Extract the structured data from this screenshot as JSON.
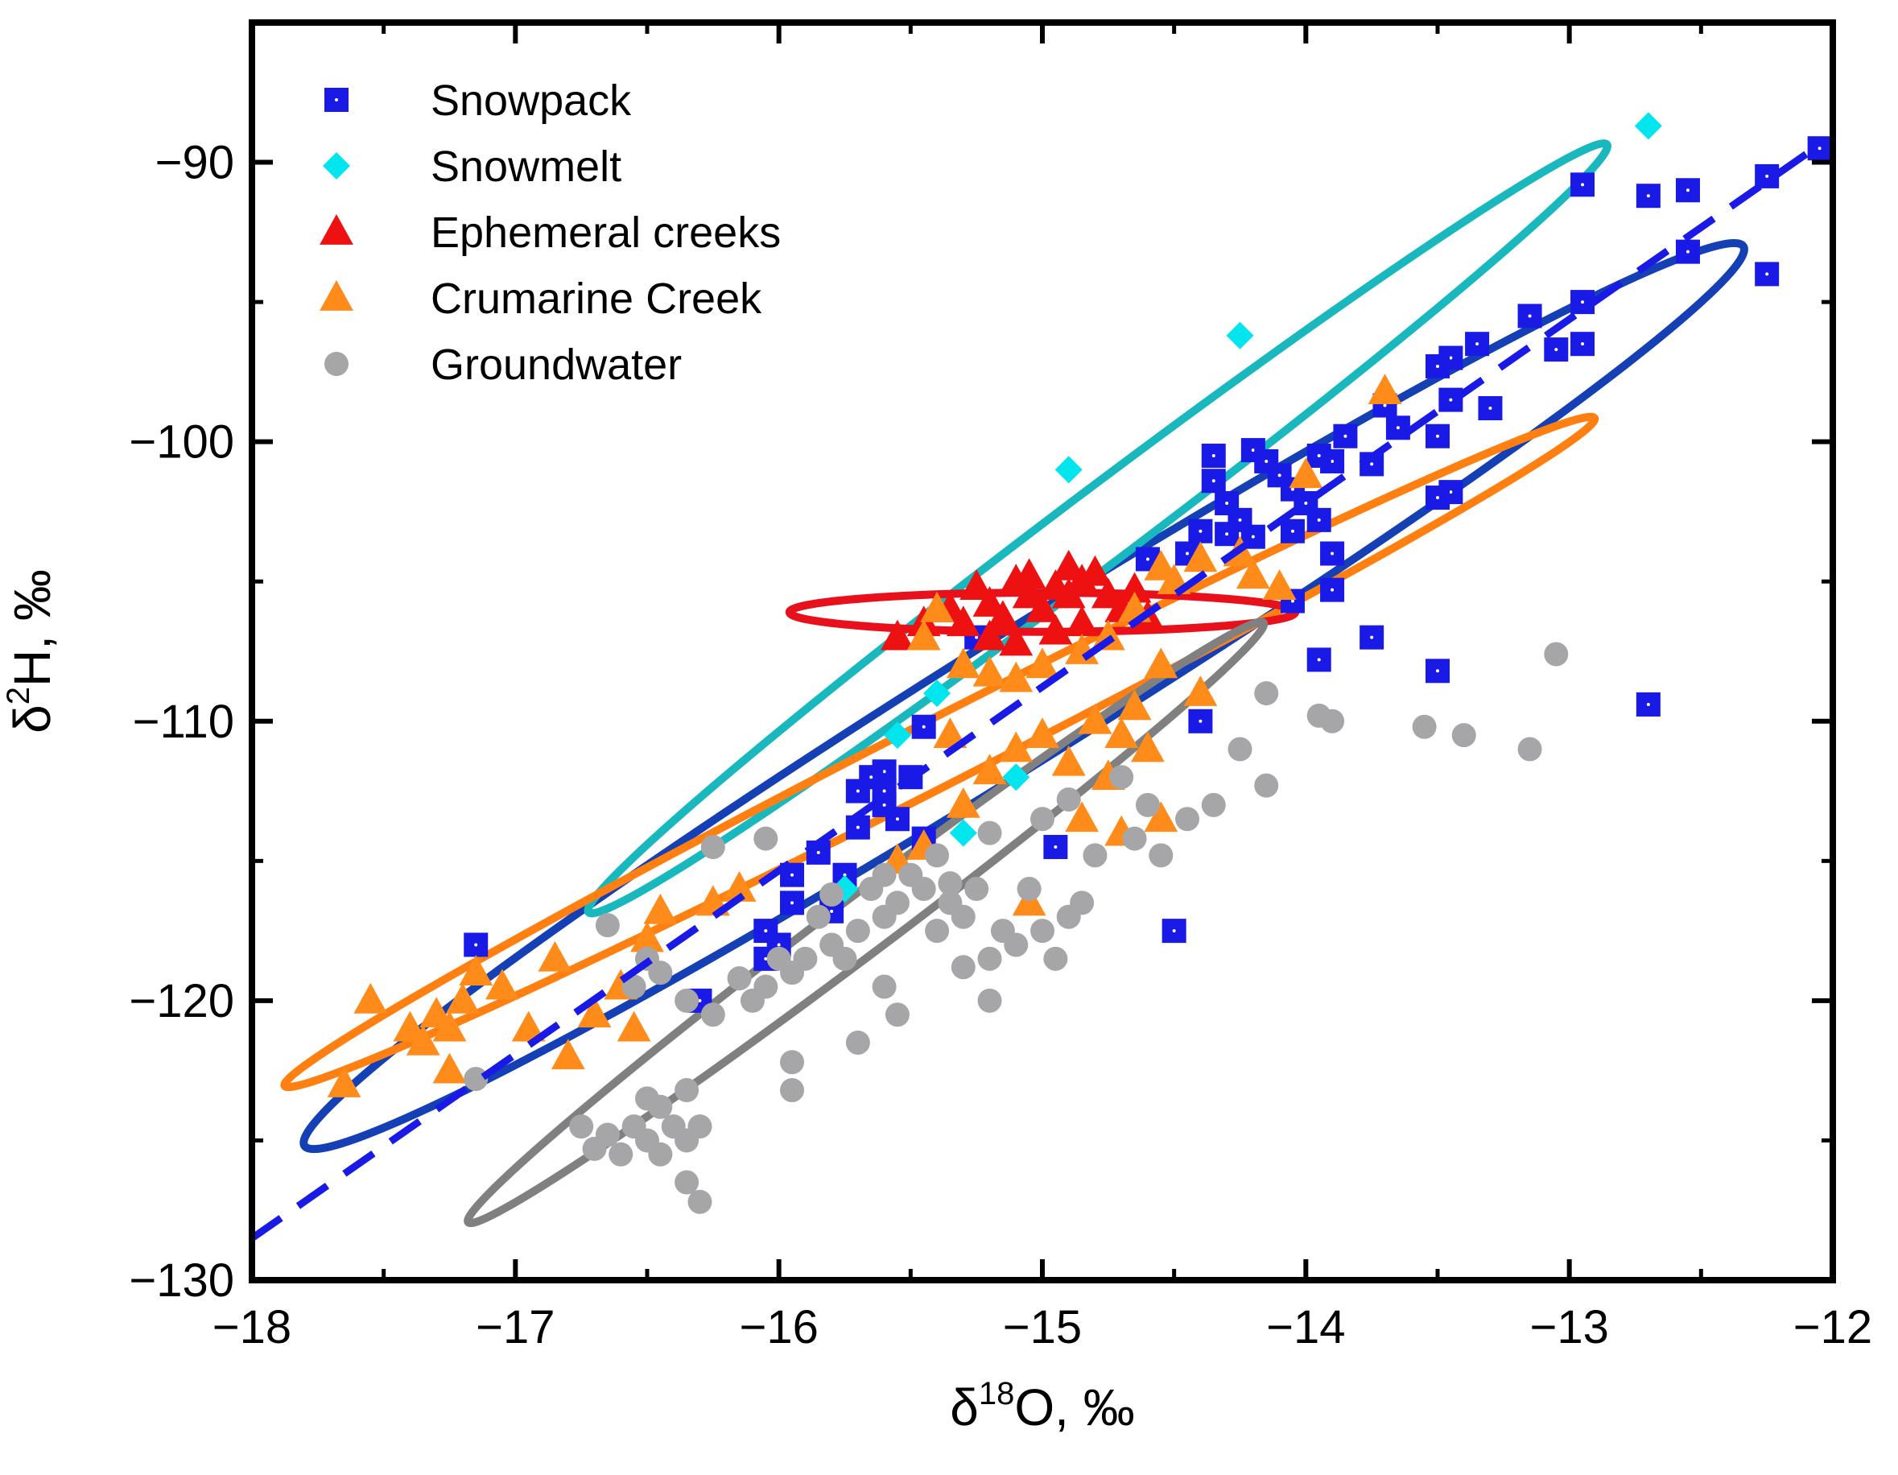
{
  "chart_data": {
    "type": "scatter",
    "title": "",
    "xlabel": {
      "prefix": "δ",
      "sup": "18",
      "main": "O, ‰"
    },
    "ylabel": {
      "prefix": "δ",
      "sup": "2",
      "main": "H, ‰"
    },
    "xlim": [
      -18,
      -12
    ],
    "ylim": [
      -130,
      -85
    ],
    "xticks": [
      -18,
      -17,
      -16,
      -15,
      -14,
      -13,
      -12
    ],
    "xtick_labels": [
      "−18",
      "−17",
      "−16",
      "−15",
      "−14",
      "−13",
      "−12"
    ],
    "yticks": [
      -130,
      -120,
      -110,
      -100,
      -90
    ],
    "ytick_labels": [
      "−130",
      "−120",
      "−110",
      "−100",
      "−90"
    ],
    "grid": false,
    "legend": {
      "position": "top-left"
    },
    "series": [
      {
        "name": "Snowpack",
        "marker": "square",
        "color": "#1a1ae6",
        "points": [
          [
            -12.05,
            -89.5
          ],
          [
            -12.25,
            -90.5
          ],
          [
            -12.55,
            -91
          ],
          [
            -12.7,
            -91.2
          ],
          [
            -12.95,
            -90.8
          ],
          [
            -12.55,
            -93.2
          ],
          [
            -12.25,
            -94
          ],
          [
            -12.95,
            -95
          ],
          [
            -12.95,
            -96.5
          ],
          [
            -13.05,
            -96.7
          ],
          [
            -13.15,
            -95.5
          ],
          [
            -13.35,
            -96.5
          ],
          [
            -13.45,
            -97
          ],
          [
            -13.5,
            -97.3
          ],
          [
            -13.3,
            -98.8
          ],
          [
            -13.45,
            -98.5
          ],
          [
            -13.7,
            -98.7
          ],
          [
            -13.65,
            -99.5
          ],
          [
            -13.5,
            -99.8
          ],
          [
            -13.85,
            -99.8
          ],
          [
            -13.75,
            -100.8
          ],
          [
            -13.9,
            -100.7
          ],
          [
            -13.95,
            -100.5
          ],
          [
            -14.35,
            -100.5
          ],
          [
            -14.2,
            -100.3
          ],
          [
            -14.15,
            -100.7
          ],
          [
            -14.1,
            -101.2
          ],
          [
            -14.05,
            -101.7
          ],
          [
            -14,
            -102.2
          ],
          [
            -14.35,
            -101.4
          ],
          [
            -14.3,
            -102.2
          ],
          [
            -14.25,
            -102.8
          ],
          [
            -14.3,
            -103.3
          ],
          [
            -14.2,
            -103.4
          ],
          [
            -14.05,
            -103.2
          ],
          [
            -13.95,
            -102.8
          ],
          [
            -13.45,
            -101.8
          ],
          [
            -13.5,
            -102
          ],
          [
            -13.9,
            -104
          ],
          [
            -13.9,
            -105.3
          ],
          [
            -14.05,
            -105.7
          ],
          [
            -13.75,
            -107
          ],
          [
            -13.5,
            -108.2
          ],
          [
            -13.95,
            -107.8
          ],
          [
            -14.45,
            -104
          ],
          [
            -14.6,
            -104.2
          ],
          [
            -14.4,
            -103.2
          ],
          [
            -14.4,
            -110
          ],
          [
            -12.7,
            -109.4
          ],
          [
            -14.5,
            -117.5
          ],
          [
            -15.25,
            -107
          ],
          [
            -15.45,
            -110.2
          ],
          [
            -15.6,
            -111.8
          ],
          [
            -15.65,
            -112
          ],
          [
            -15.6,
            -113
          ],
          [
            -15.7,
            -112.5
          ],
          [
            -15.55,
            -113.5
          ],
          [
            -15.45,
            -114.2
          ],
          [
            -15.7,
            -113.8
          ],
          [
            -15.75,
            -115.5
          ],
          [
            -15.85,
            -114.7
          ],
          [
            -15.95,
            -115.5
          ],
          [
            -16,
            -118
          ],
          [
            -16.05,
            -118.5
          ],
          [
            -16.05,
            -117.5
          ],
          [
            -15.8,
            -116.8
          ],
          [
            -15.95,
            -116.5
          ],
          [
            -15.6,
            -112.5
          ],
          [
            -15.5,
            -112
          ],
          [
            -14.95,
            -114.5
          ],
          [
            -16.3,
            -120
          ],
          [
            -17.15,
            -118
          ]
        ]
      },
      {
        "name": "Snowmelt",
        "marker": "diamond",
        "color": "#00e5ee",
        "points": [
          [
            -12.7,
            -88.7
          ],
          [
            -14.25,
            -96.2
          ],
          [
            -14.9,
            -101
          ],
          [
            -15.4,
            -109
          ],
          [
            -15.55,
            -110.5
          ],
          [
            -15.1,
            -112
          ],
          [
            -15.3,
            -114
          ],
          [
            -15.75,
            -116
          ]
        ]
      },
      {
        "name": "Ephemeral creeks",
        "marker": "triangle",
        "color": "#ee1111",
        "points": [
          [
            -15.35,
            -106
          ],
          [
            -15.25,
            -105.2
          ],
          [
            -15.2,
            -105.8
          ],
          [
            -15.15,
            -106.3
          ],
          [
            -15.1,
            -105
          ],
          [
            -15.05,
            -105.5
          ],
          [
            -15,
            -106
          ],
          [
            -14.95,
            -105.2
          ],
          [
            -14.9,
            -104.5
          ],
          [
            -14.85,
            -105
          ],
          [
            -14.8,
            -104.7
          ],
          [
            -14.75,
            -105.5
          ],
          [
            -14.7,
            -106
          ],
          [
            -14.65,
            -105.3
          ],
          [
            -14.6,
            -106.3
          ],
          [
            -15.2,
            -107
          ],
          [
            -15.1,
            -107.2
          ],
          [
            -14.95,
            -106.8
          ],
          [
            -14.85,
            -106.5
          ],
          [
            -15.45,
            -106.5
          ],
          [
            -15.55,
            -107
          ],
          [
            -15.3,
            -106.5
          ],
          [
            -14.9,
            -105.5
          ],
          [
            -15.05,
            -104.8
          ]
        ]
      },
      {
        "name": "Crumarine Creek",
        "marker": "triangle",
        "color": "#ff8c1a",
        "points": [
          [
            -13.7,
            -98.2
          ],
          [
            -14,
            -101.2
          ],
          [
            -14.1,
            -105.2
          ],
          [
            -14.2,
            -104.8
          ],
          [
            -14.25,
            -104
          ],
          [
            -14.4,
            -104.2
          ],
          [
            -14.5,
            -105
          ],
          [
            -14.55,
            -104.5
          ],
          [
            -14.65,
            -106
          ],
          [
            -14.75,
            -107
          ],
          [
            -14.85,
            -107.5
          ],
          [
            -15,
            -108
          ],
          [
            -15.1,
            -108.5
          ],
          [
            -15.2,
            -108.3
          ],
          [
            -15.3,
            -108
          ],
          [
            -15.4,
            -106
          ],
          [
            -15.45,
            -107
          ],
          [
            -14.55,
            -108
          ],
          [
            -14.65,
            -109.5
          ],
          [
            -14.7,
            -110.5
          ],
          [
            -14.8,
            -110
          ],
          [
            -14.9,
            -111.5
          ],
          [
            -15,
            -110.5
          ],
          [
            -15.1,
            -111
          ],
          [
            -15.2,
            -111.8
          ],
          [
            -15.3,
            -113
          ],
          [
            -15.35,
            -110.5
          ],
          [
            -14.75,
            -112
          ],
          [
            -14.85,
            -113.5
          ],
          [
            -14.6,
            -111
          ],
          [
            -14.4,
            -109
          ],
          [
            -14.55,
            -113.5
          ],
          [
            -14.7,
            -114
          ],
          [
            -15.45,
            -114.5
          ],
          [
            -15.55,
            -115
          ],
          [
            -15.05,
            -116.5
          ],
          [
            -16.15,
            -116
          ],
          [
            -16.25,
            -116.5
          ],
          [
            -16.45,
            -116.8
          ],
          [
            -16.5,
            -117.8
          ],
          [
            -16.6,
            -119.5
          ],
          [
            -16.7,
            -120.5
          ],
          [
            -16.85,
            -118.5
          ],
          [
            -16.8,
            -122
          ],
          [
            -16.95,
            -121
          ],
          [
            -17.05,
            -119.5
          ],
          [
            -17.15,
            -119
          ],
          [
            -17.2,
            -120
          ],
          [
            -17.25,
            -121
          ],
          [
            -17.3,
            -120.5
          ],
          [
            -17.35,
            -121.5
          ],
          [
            -17.4,
            -121
          ],
          [
            -17.25,
            -122.5
          ],
          [
            -17.55,
            -120
          ],
          [
            -17.65,
            -123
          ],
          [
            -16.55,
            -121
          ]
        ]
      },
      {
        "name": "Groundwater",
        "marker": "circle",
        "color": "#a6a6a8",
        "points": [
          [
            -13.05,
            -107.6
          ],
          [
            -13.15,
            -111
          ],
          [
            -13.4,
            -110.5
          ],
          [
            -13.55,
            -110.2
          ],
          [
            -13.9,
            -110
          ],
          [
            -13.95,
            -109.8
          ],
          [
            -14.15,
            -109
          ],
          [
            -14.15,
            -112.3
          ],
          [
            -14.25,
            -111
          ],
          [
            -14.35,
            -113
          ],
          [
            -14.45,
            -113.5
          ],
          [
            -14.55,
            -114.8
          ],
          [
            -14.6,
            -113
          ],
          [
            -14.7,
            -112
          ],
          [
            -14.65,
            -114.2
          ],
          [
            -14.8,
            -114.8
          ],
          [
            -14.85,
            -116.5
          ],
          [
            -14.9,
            -117
          ],
          [
            -14.95,
            -118.5
          ],
          [
            -15,
            -117.5
          ],
          [
            -15.05,
            -116
          ],
          [
            -15.1,
            -118
          ],
          [
            -15.15,
            -117.5
          ],
          [
            -15.2,
            -118.5
          ],
          [
            -15.25,
            -116
          ],
          [
            -15.3,
            -117
          ],
          [
            -15.35,
            -116.5
          ],
          [
            -15.4,
            -117.5
          ],
          [
            -15.45,
            -116
          ],
          [
            -15.5,
            -115.5
          ],
          [
            -15.55,
            -116.5
          ],
          [
            -15.6,
            -117
          ],
          [
            -15.65,
            -116
          ],
          [
            -15.7,
            -117.5
          ],
          [
            -15.75,
            -118.5
          ],
          [
            -15.8,
            -118
          ],
          [
            -15.85,
            -117
          ],
          [
            -15.9,
            -118.5
          ],
          [
            -15.95,
            -119
          ],
          [
            -16,
            -118.5
          ],
          [
            -16.05,
            -119.5
          ],
          [
            -16.1,
            -120
          ],
          [
            -16.15,
            -119.2
          ],
          [
            -15.95,
            -122.2
          ],
          [
            -15.95,
            -123.2
          ],
          [
            -15.7,
            -121.5
          ],
          [
            -15.55,
            -120.5
          ],
          [
            -15.6,
            -119.5
          ],
          [
            -15.3,
            -118.8
          ],
          [
            -15.2,
            -120
          ],
          [
            -16.25,
            -114.5
          ],
          [
            -16.05,
            -114.2
          ],
          [
            -16.25,
            -120.5
          ],
          [
            -16.35,
            -120
          ],
          [
            -16.45,
            -119
          ],
          [
            -16.5,
            -118.5
          ],
          [
            -16.55,
            -119.5
          ],
          [
            -16.65,
            -117.3
          ],
          [
            -16.3,
            -124.5
          ],
          [
            -16.35,
            -126.5
          ],
          [
            -16.3,
            -127.2
          ],
          [
            -16.35,
            -125
          ],
          [
            -16.4,
            -124.5
          ],
          [
            -16.45,
            -125.5
          ],
          [
            -16.5,
            -125
          ],
          [
            -16.55,
            -124.5
          ],
          [
            -16.6,
            -125.5
          ],
          [
            -16.65,
            -124.8
          ],
          [
            -16.7,
            -125.3
          ],
          [
            -16.75,
            -124.5
          ],
          [
            -16.5,
            -123.5
          ],
          [
            -16.45,
            -123.8
          ],
          [
            -16.35,
            -123.2
          ],
          [
            -17.15,
            -122.8
          ],
          [
            -14.9,
            -112.8
          ],
          [
            -15.0,
            -113.5
          ],
          [
            -15.2,
            -114
          ],
          [
            -15.4,
            -114.8
          ],
          [
            -15.6,
            -115.5
          ],
          [
            -15.35,
            -115.8
          ],
          [
            -15.8,
            -116.2
          ]
        ]
      }
    ],
    "regression_line": {
      "name": "dashed fit",
      "color": "#1a1ae6",
      "from": [
        -18,
        -128.5
      ],
      "to": [
        -12.1,
        -89.7
      ]
    },
    "ellipses": [
      {
        "name": "Snowpack",
        "color": "#1540b5",
        "center": [
          -15.07,
          -109.1
        ],
        "semi_axes": [
          3.22,
          2.3
        ],
        "angle_deg": 32
      },
      {
        "name": "Snowmelt",
        "color": "#19b8be",
        "center": [
          -14.79,
          -103.1
        ],
        "semi_axes": [
          2.42,
          1.32
        ],
        "angle_deg": 37
      },
      {
        "name": "Crumarine Creek",
        "color": "#ff7f10",
        "center": [
          -15.39,
          -111.1
        ],
        "semi_axes": [
          2.79,
          1.18
        ],
        "angle_deg": 27
      },
      {
        "name": "Ephemeral creeks",
        "color": "#e8101a",
        "center": [
          -15.0,
          -106.1
        ],
        "semi_axes": [
          0.96,
          0.7
        ],
        "angle_deg": 0
      },
      {
        "name": "Groundwater",
        "color": "#808080",
        "center": [
          -15.67,
          -117.2
        ],
        "semi_axes": [
          1.89,
          1.03
        ],
        "angle_deg": 37
      }
    ]
  }
}
